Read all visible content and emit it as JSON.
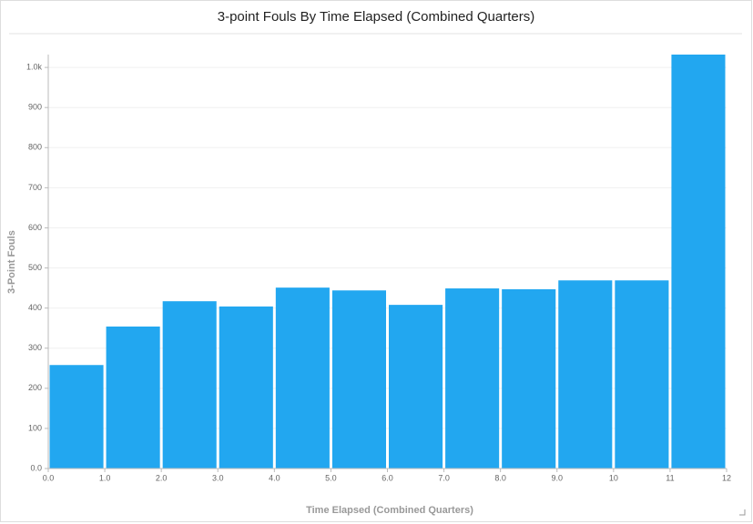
{
  "chart_data": {
    "type": "histogram",
    "title": "3-point Fouls By Time Elapsed (Combined Quarters)",
    "x_label": "Time Elapsed (Combined Quarters)",
    "y_label": "3-Point Fouls",
    "bins": [
      0,
      1,
      2,
      3,
      4,
      5,
      6,
      7,
      8,
      9,
      10,
      11,
      12
    ],
    "values": [
      258,
      354,
      417,
      404,
      451,
      444,
      408,
      449,
      447,
      469,
      469,
      1032
    ],
    "color": "#22a7f0",
    "xlim": [
      0,
      12
    ],
    "xticks": [
      {
        "value": 0,
        "label": "0.0"
      },
      {
        "value": 1,
        "label": "1.0"
      },
      {
        "value": 2,
        "label": "2.0"
      },
      {
        "value": 3,
        "label": "3.0"
      },
      {
        "value": 4,
        "label": "4.0"
      },
      {
        "value": 5,
        "label": "5.0"
      },
      {
        "value": 6,
        "label": "6.0"
      },
      {
        "value": 7,
        "label": "7.0"
      },
      {
        "value": 8,
        "label": "8.0"
      },
      {
        "value": 9,
        "label": "9.0"
      },
      10,
      11,
      12
    ],
    "ylim": [
      0,
      1032
    ],
    "yticks": [
      {
        "value": 0,
        "label": "0.0"
      },
      100,
      200,
      300,
      400,
      500,
      600,
      700,
      800,
      900,
      {
        "value": 1000,
        "label": "1.0k"
      }
    ],
    "grid": true
  }
}
